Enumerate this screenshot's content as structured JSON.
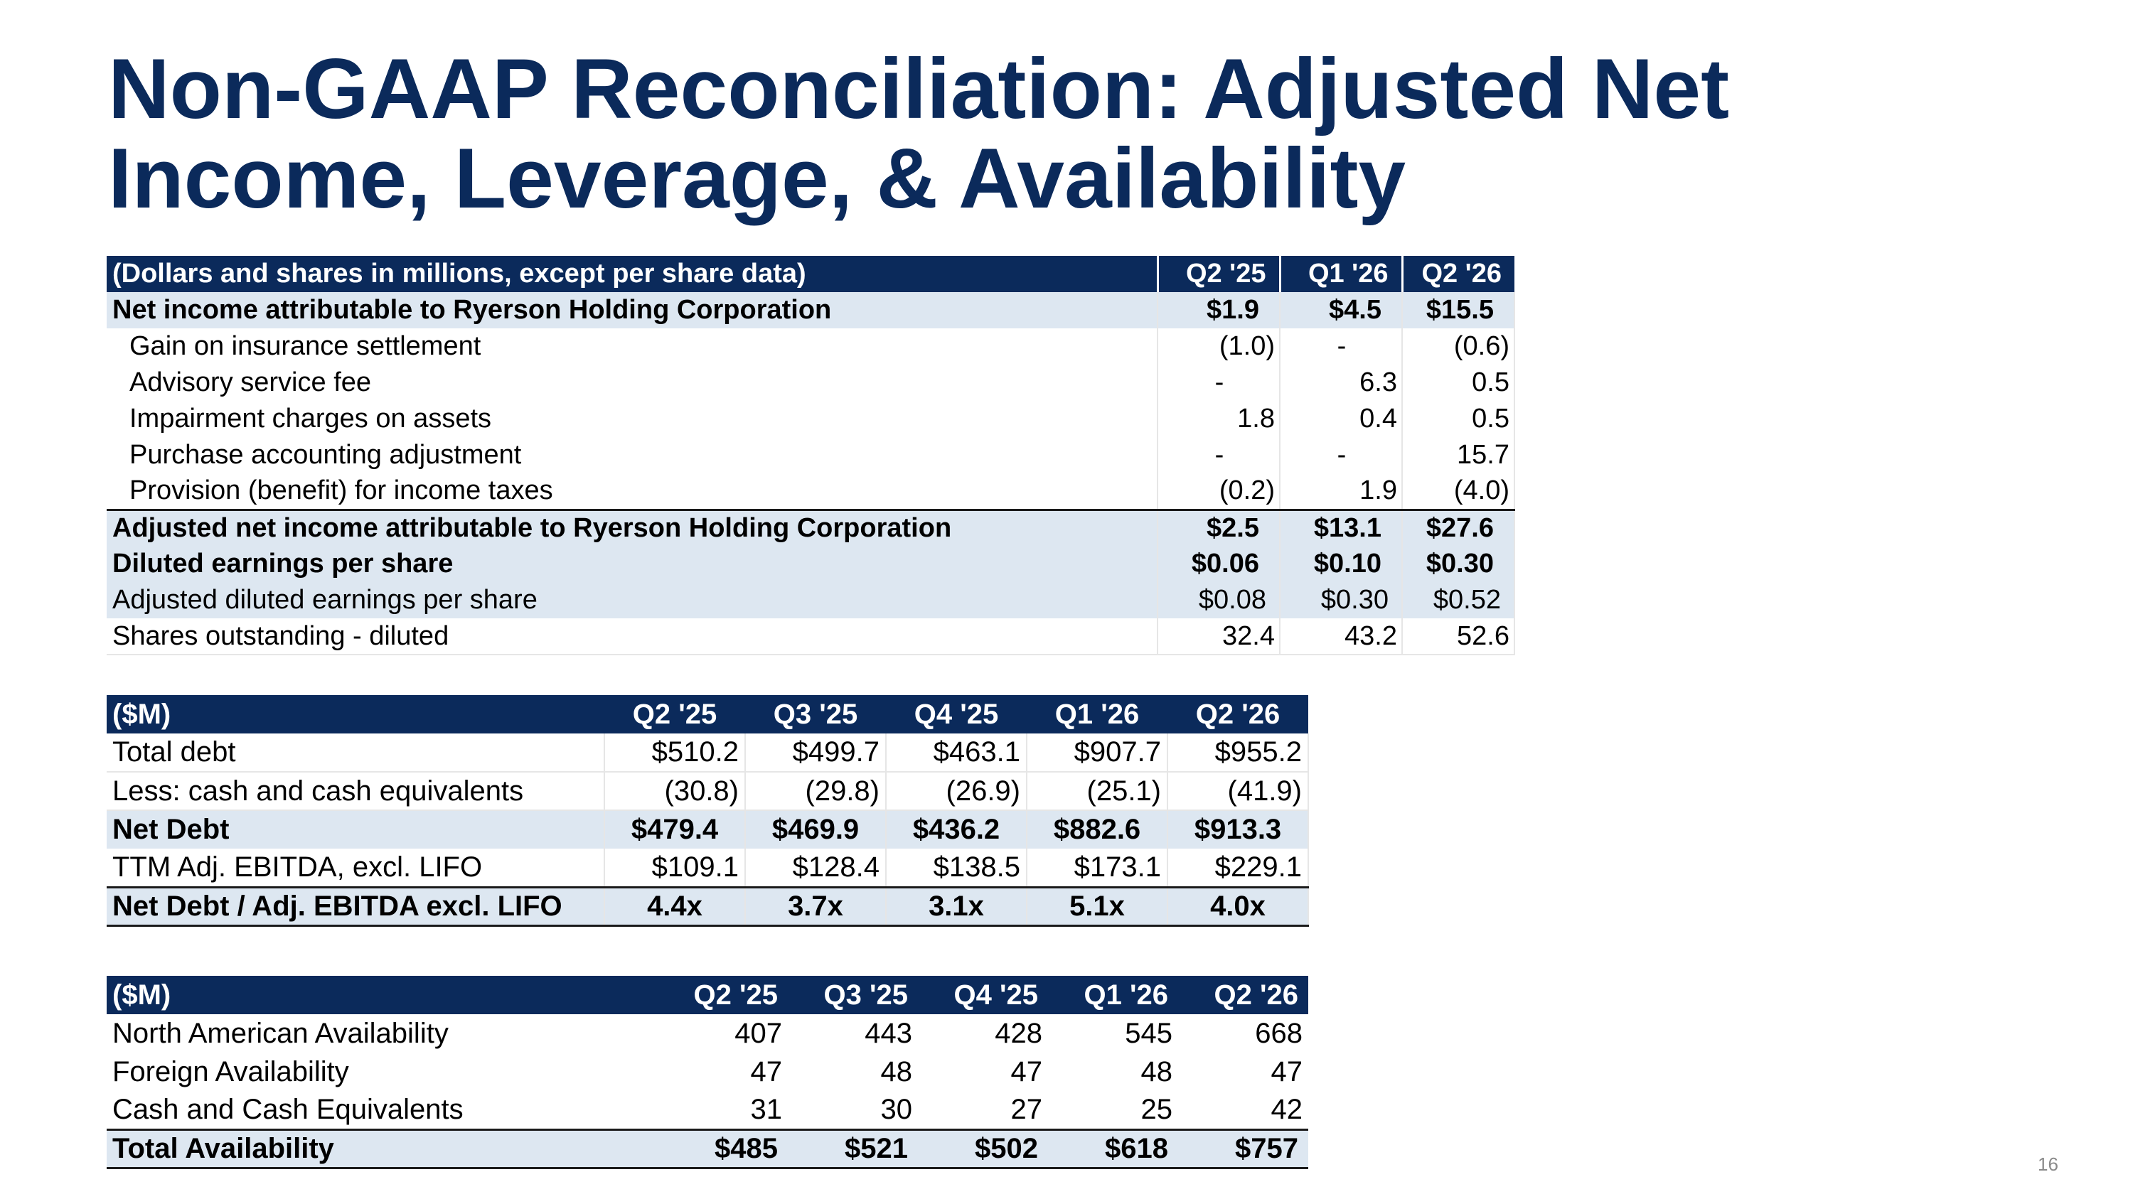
{
  "title": "Non-GAAP Reconciliation: Adjusted Net Income, Leverage, & Availability",
  "page_number": "16",
  "net_income_table": {
    "header": [
      "(Dollars and shares in millions, except per share data)",
      "Q2 '25",
      "Q1 '26",
      "Q2 '26"
    ],
    "rows": [
      [
        "Net income attributable to Ryerson Holding Corporation",
        "$1.9",
        "$4.5",
        "$15.5"
      ],
      [
        "Gain on insurance settlement",
        "(1.0)",
        "-",
        "(0.6)"
      ],
      [
        "Advisory service fee",
        "-",
        "6.3",
        "0.5"
      ],
      [
        "Impairment charges on assets",
        "1.8",
        "0.4",
        "0.5"
      ],
      [
        "Purchase accounting adjustment",
        "-",
        "-",
        "15.7"
      ],
      [
        "Provision (benefit) for income taxes",
        "(0.2)",
        "1.9",
        "(4.0)"
      ],
      [
        "Adjusted net income attributable to Ryerson Holding Corporation",
        "$2.5",
        "$13.1",
        "$27.6"
      ],
      [
        "Diluted earnings per share",
        "$0.06",
        "$0.10",
        "$0.30"
      ],
      [
        "Adjusted diluted earnings per share",
        "$0.08",
        "$0.30",
        "$0.52"
      ],
      [
        "Shares outstanding - diluted",
        "32.4",
        "43.2",
        "52.6"
      ]
    ]
  },
  "leverage_table": {
    "header": [
      "($M)",
      "Q2 '25",
      "Q3 '25",
      "Q4 '25",
      "Q1 '26",
      "Q2 '26"
    ],
    "rows": [
      [
        "Total debt",
        "$510.2",
        "$499.7",
        "$463.1",
        "$907.7",
        "$955.2"
      ],
      [
        "Less: cash and cash equivalents",
        "(30.8)",
        "(29.8)",
        "(26.9)",
        "(25.1)",
        "(41.9)"
      ],
      [
        "Net Debt",
        "$479.4",
        "$469.9",
        "$436.2",
        "$882.6",
        "$913.3"
      ],
      [
        "TTM Adj. EBITDA, excl. LIFO",
        "$109.1",
        "$128.4",
        "$138.5",
        "$173.1",
        "$229.1"
      ],
      [
        "Net Debt / Adj. EBITDA excl. LIFO",
        "4.4x",
        "3.7x",
        "3.1x",
        "5.1x",
        "4.0x"
      ]
    ]
  },
  "availability_table": {
    "header": [
      "($M)",
      "Q2 '25",
      "Q3 '25",
      "Q4 '25",
      "Q1 '26",
      "Q2 '26"
    ],
    "rows": [
      [
        "North American Availability",
        "407",
        "443",
        "428",
        "545",
        "668"
      ],
      [
        "Foreign Availability",
        "47",
        "48",
        "47",
        "48",
        "47"
      ],
      [
        "Cash and Cash Equivalents",
        "31",
        "30",
        "27",
        "25",
        "42"
      ],
      [
        "Total Availability",
        "$485",
        "$521",
        "$502",
        "$618",
        "$757"
      ]
    ]
  }
}
